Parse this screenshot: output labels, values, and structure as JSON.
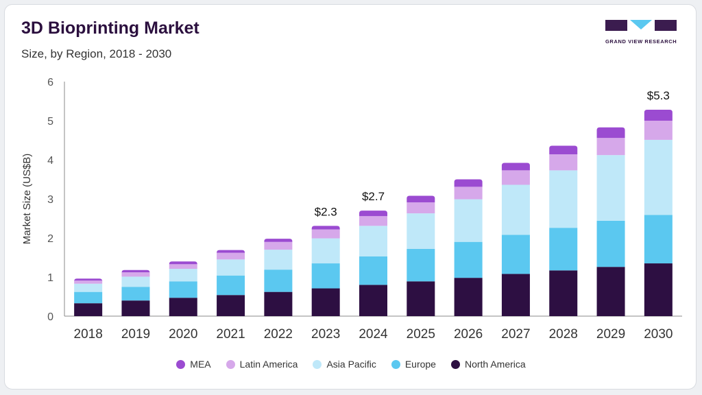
{
  "header": {
    "title": "3D Bioprinting Market",
    "subtitle": "Size, by Region, 2018 - 2030"
  },
  "logo": {
    "text": "GRAND VIEW RESEARCH",
    "colors": {
      "dark": "#3b1c4f",
      "accent": "#5bc8f0"
    }
  },
  "chart_data": {
    "type": "bar",
    "stacked": true,
    "title": "3D Bioprinting Market",
    "subtitle": "Size, by Region, 2018 - 2030",
    "xlabel": "",
    "ylabel": "Market Size (US$B)",
    "ylim": [
      0,
      6
    ],
    "yticks": [
      0,
      1,
      2,
      3,
      4,
      5,
      6
    ],
    "grid": false,
    "legend_position": "bottom",
    "categories": [
      "2018",
      "2019",
      "2020",
      "2021",
      "2022",
      "2023",
      "2024",
      "2025",
      "2026",
      "2027",
      "2028",
      "2029",
      "2030"
    ],
    "series": [
      {
        "name": "North America",
        "color": "#2d0f42",
        "values": [
          0.33,
          0.4,
          0.47,
          0.54,
          0.62,
          0.71,
          0.8,
          0.89,
          0.98,
          1.08,
          1.17,
          1.26,
          1.35
        ]
      },
      {
        "name": "Europe",
        "color": "#5bc8f0",
        "values": [
          0.29,
          0.35,
          0.42,
          0.5,
          0.57,
          0.64,
          0.73,
          0.83,
          0.92,
          1.0,
          1.09,
          1.18,
          1.24
        ]
      },
      {
        "name": "Asia Pacific",
        "color": "#bfe8f9",
        "values": [
          0.21,
          0.26,
          0.32,
          0.41,
          0.51,
          0.64,
          0.78,
          0.91,
          1.09,
          1.28,
          1.47,
          1.68,
          1.92
        ]
      },
      {
        "name": "Latin America",
        "color": "#d6a8ea",
        "values": [
          0.08,
          0.11,
          0.12,
          0.17,
          0.2,
          0.23,
          0.25,
          0.28,
          0.32,
          0.37,
          0.41,
          0.44,
          0.49
        ]
      },
      {
        "name": "MEA",
        "color": "#9b4bd1",
        "values": [
          0.05,
          0.06,
          0.07,
          0.07,
          0.08,
          0.09,
          0.14,
          0.17,
          0.19,
          0.19,
          0.22,
          0.27,
          0.28
        ]
      }
    ],
    "legend_order": [
      "MEA",
      "Latin America",
      "Asia Pacific",
      "Europe",
      "North America"
    ],
    "annotations": [
      {
        "category": "2023",
        "text": "$2.3"
      },
      {
        "category": "2024",
        "text": "$2.7"
      },
      {
        "category": "2030",
        "text": "$5.3"
      }
    ]
  }
}
